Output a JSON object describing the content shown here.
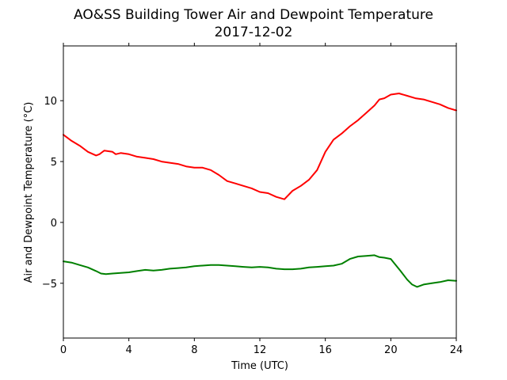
{
  "chart_data": {
    "type": "line",
    "title_line1": "AO&SS Building Tower Air and Dewpoint Temperature",
    "title_line2": "2017-12-02",
    "xlabel": "Time (UTC)",
    "ylabel": "Air and Dewpoint Temperature (°C)",
    "xlim": [
      0,
      24
    ],
    "ylim": [
      -9.5,
      14.5
    ],
    "x_ticks": [
      0,
      4,
      8,
      12,
      16,
      20,
      24
    ],
    "y_ticks": [
      -5,
      0,
      5,
      10
    ],
    "grid": false,
    "legend": "none",
    "series": [
      {
        "color": "#ff0000",
        "x": [
          0,
          0.5,
          1,
          1.5,
          2,
          2.2,
          2.5,
          3,
          3.2,
          3.5,
          4,
          4.5,
          5,
          5.5,
          6,
          6.5,
          7,
          7.5,
          8,
          8.5,
          9,
          9.5,
          10,
          10.5,
          11,
          11.5,
          12,
          12.5,
          13,
          13.5,
          14,
          14.5,
          15,
          15.5,
          16,
          16.5,
          17,
          17.5,
          18,
          18.5,
          19,
          19.3,
          19.6,
          20,
          20.5,
          21,
          21.5,
          22,
          22.5,
          23,
          23.5,
          24
        ],
        "y": [
          7.2,
          6.7,
          6.3,
          5.8,
          5.5,
          5.6,
          5.9,
          5.8,
          5.6,
          5.7,
          5.6,
          5.4,
          5.3,
          5.2,
          5.0,
          4.9,
          4.8,
          4.6,
          4.5,
          4.5,
          4.3,
          3.9,
          3.4,
          3.2,
          3.0,
          2.8,
          2.5,
          2.4,
          2.1,
          1.9,
          2.6,
          3.0,
          3.5,
          4.3,
          5.8,
          6.8,
          7.3,
          7.9,
          8.4,
          9.0,
          9.6,
          10.1,
          10.2,
          10.5,
          10.6,
          10.4,
          10.2,
          10.1,
          9.9,
          9.7,
          9.4,
          9.2
        ]
      },
      {
        "color": "#008000",
        "x": [
          0,
          0.5,
          1,
          1.5,
          2,
          2.3,
          2.6,
          3,
          3.5,
          4,
          4.5,
          5,
          5.5,
          6,
          6.5,
          7,
          7.5,
          8,
          8.5,
          9,
          9.5,
          10,
          10.5,
          11,
          11.5,
          12,
          12.5,
          13,
          13.5,
          14,
          14.5,
          15,
          15.5,
          16,
          16.5,
          17,
          17.5,
          18,
          18.5,
          19,
          19.3,
          19.6,
          20,
          20.3,
          20.6,
          21,
          21.3,
          21.6,
          22,
          22.5,
          23,
          23.5,
          24
        ],
        "y": [
          -3.2,
          -3.3,
          -3.5,
          -3.7,
          -4.0,
          -4.2,
          -4.25,
          -4.2,
          -4.15,
          -4.1,
          -4.0,
          -3.9,
          -3.95,
          -3.9,
          -3.8,
          -3.75,
          -3.7,
          -3.6,
          -3.55,
          -3.5,
          -3.5,
          -3.55,
          -3.6,
          -3.65,
          -3.7,
          -3.65,
          -3.7,
          -3.8,
          -3.85,
          -3.85,
          -3.8,
          -3.7,
          -3.65,
          -3.6,
          -3.55,
          -3.4,
          -3.0,
          -2.8,
          -2.75,
          -2.7,
          -2.85,
          -2.9,
          -3.0,
          -3.5,
          -4.0,
          -4.7,
          -5.1,
          -5.3,
          -5.1,
          -5.0,
          -4.9,
          -4.75,
          -4.8
        ]
      }
    ]
  }
}
